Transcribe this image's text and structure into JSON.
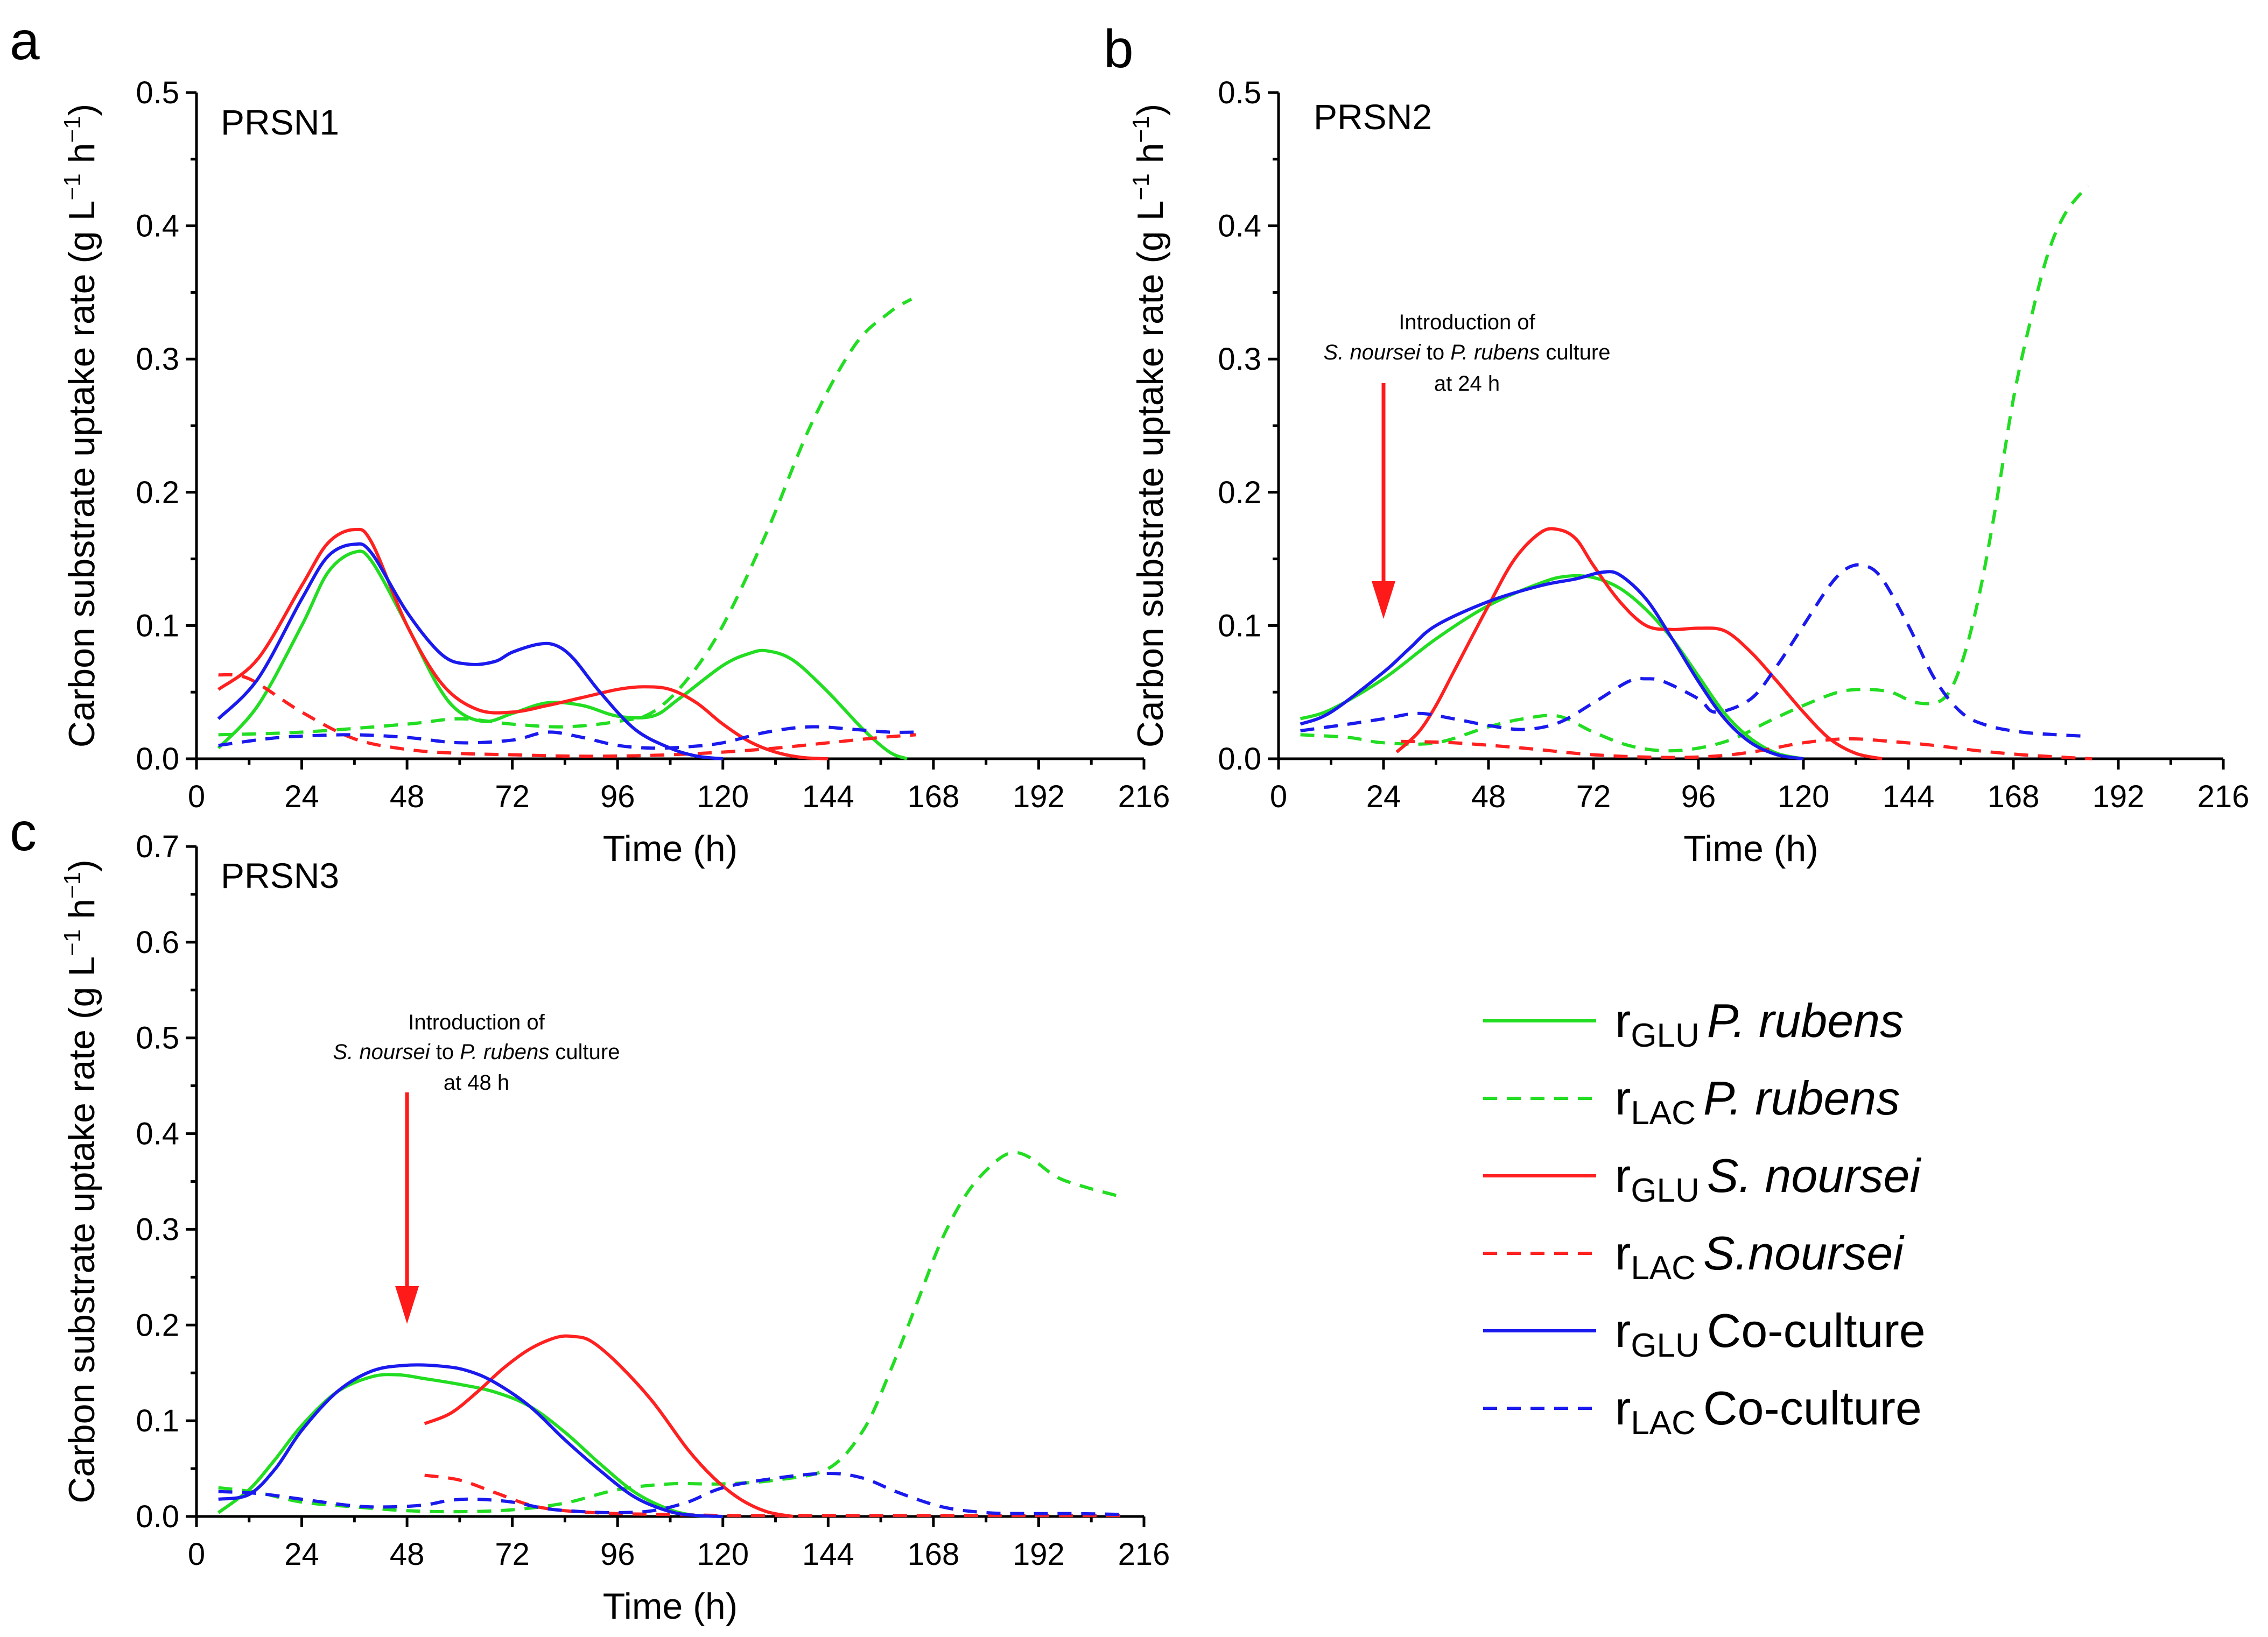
{
  "chart_data": [
    {
      "panel": "a",
      "type": "line",
      "title": "PRSN1",
      "xlabel": "Time (h)",
      "ylabel": "Carbon substrate uptake rate (g L−1 h−1)",
      "xlim": [
        0,
        216
      ],
      "ylim": [
        0,
        0.5
      ],
      "xticks": [
        0,
        24,
        48,
        72,
        96,
        120,
        144,
        168,
        192,
        216
      ],
      "yticks": [
        "0.0",
        "0.1",
        "0.2",
        "0.3",
        "0.4",
        "0.5"
      ],
      "series": [
        {
          "name": "rGLU P. rubens",
          "color": "#22dd22",
          "style": "solid",
          "x": [
            5,
            14,
            24,
            30,
            36,
            40,
            48,
            55,
            60,
            66,
            72,
            80,
            88,
            96,
            104,
            110,
            120,
            126,
            130,
            136,
            144,
            152,
            158,
            162
          ],
          "y": [
            0.008,
            0.04,
            0.1,
            0.14,
            0.155,
            0.148,
            0.1,
            0.055,
            0.035,
            0.028,
            0.034,
            0.042,
            0.04,
            0.032,
            0.032,
            0.045,
            0.07,
            0.079,
            0.081,
            0.074,
            0.05,
            0.022,
            0.005,
            0.0
          ]
        },
        {
          "name": "rLAC P. rubens",
          "color": "#22dd22",
          "style": "dashed",
          "x": [
            5,
            24,
            48,
            60,
            72,
            84,
            96,
            104,
            112,
            120,
            130,
            140,
            150,
            158,
            163
          ],
          "y": [
            0.018,
            0.02,
            0.026,
            0.03,
            0.026,
            0.024,
            0.028,
            0.035,
            0.06,
            0.1,
            0.17,
            0.25,
            0.31,
            0.335,
            0.345
          ]
        },
        {
          "name": "rGLU S. noursei",
          "color": "#ff2020",
          "style": "solid",
          "x": [
            5,
            14,
            24,
            30,
            36,
            40,
            48,
            56,
            64,
            72,
            80,
            88,
            96,
            102,
            108,
            114,
            120,
            126,
            132,
            138,
            144
          ],
          "y": [
            0.052,
            0.075,
            0.13,
            0.162,
            0.172,
            0.162,
            0.1,
            0.056,
            0.037,
            0.035,
            0.04,
            0.046,
            0.052,
            0.054,
            0.052,
            0.042,
            0.026,
            0.013,
            0.005,
            0.001,
            0.0
          ]
        },
        {
          "name": "rLAC S.noursei",
          "color": "#ff2020",
          "style": "dashed",
          "x": [
            5,
            12,
            24,
            36,
            48,
            60,
            72,
            84,
            96,
            108,
            120,
            132,
            144,
            156,
            164
          ],
          "y": [
            0.063,
            0.06,
            0.035,
            0.015,
            0.007,
            0.004,
            0.003,
            0.002,
            0.002,
            0.003,
            0.005,
            0.008,
            0.012,
            0.016,
            0.018
          ]
        },
        {
          "name": "rGLU Co-culture",
          "color": "#1a1aee",
          "style": "solid",
          "x": [
            5,
            14,
            24,
            30,
            36,
            40,
            48,
            56,
            62,
            68,
            72,
            78,
            82,
            86,
            92,
            100,
            108,
            114,
            120
          ],
          "y": [
            0.03,
            0.06,
            0.12,
            0.152,
            0.161,
            0.154,
            0.11,
            0.078,
            0.071,
            0.073,
            0.08,
            0.086,
            0.085,
            0.075,
            0.05,
            0.022,
            0.008,
            0.002,
            0.0
          ]
        },
        {
          "name": "rLAC Co-culture",
          "color": "#1a1aee",
          "style": "dashed",
          "x": [
            5,
            16,
            24,
            36,
            48,
            60,
            72,
            80,
            88,
            96,
            104,
            112,
            120,
            130,
            140,
            150,
            158,
            164
          ],
          "y": [
            0.01,
            0.015,
            0.017,
            0.018,
            0.016,
            0.012,
            0.014,
            0.02,
            0.016,
            0.01,
            0.008,
            0.009,
            0.012,
            0.02,
            0.024,
            0.022,
            0.02,
            0.02
          ]
        }
      ]
    },
    {
      "panel": "b",
      "type": "line",
      "title": "PRSN2",
      "xlabel": "Time (h)",
      "ylabel": "Carbon substrate uptake rate (g L−1 h−1)",
      "xlim": [
        0,
        216
      ],
      "ylim": [
        0,
        0.5
      ],
      "xticks": [
        0,
        24,
        48,
        72,
        96,
        120,
        144,
        168,
        192,
        216
      ],
      "yticks": [
        "0.0",
        "0.1",
        "0.2",
        "0.3",
        "0.4",
        "0.5"
      ],
      "annotation": {
        "lines": [
          "Introduction of",
          "S. noursei to P. rubens culture",
          "at 24 h"
        ],
        "arrow_time": 24
      },
      "series": [
        {
          "name": "rGLU P. rubens",
          "color": "#22dd22",
          "style": "solid",
          "x": [
            5,
            12,
            24,
            36,
            48,
            60,
            66,
            72,
            78,
            84,
            90,
            96,
            102,
            108,
            114,
            120
          ],
          "y": [
            0.03,
            0.037,
            0.06,
            0.09,
            0.115,
            0.132,
            0.137,
            0.136,
            0.128,
            0.112,
            0.09,
            0.062,
            0.034,
            0.015,
            0.004,
            0.0
          ]
        },
        {
          "name": "rLAC P. rubens",
          "color": "#22dd22",
          "style": "dashed",
          "x": [
            5,
            16,
            24,
            36,
            48,
            56,
            64,
            72,
            80,
            88,
            96,
            104,
            112,
            120,
            128,
            134,
            140,
            146,
            152,
            156,
            160,
            164,
            168,
            172,
            176,
            180,
            185
          ],
          "y": [
            0.018,
            0.016,
            0.012,
            0.012,
            0.024,
            0.03,
            0.032,
            0.02,
            0.01,
            0.006,
            0.008,
            0.015,
            0.028,
            0.04,
            0.05,
            0.052,
            0.05,
            0.042,
            0.045,
            0.07,
            0.12,
            0.19,
            0.27,
            0.33,
            0.38,
            0.41,
            0.43
          ]
        },
        {
          "name": "rGLU S. noursei",
          "color": "#ff2020",
          "style": "solid",
          "x": [
            27,
            32,
            36,
            40,
            48,
            54,
            60,
            64,
            68,
            72,
            78,
            84,
            90,
            96,
            102,
            108,
            114,
            120,
            126,
            132,
            138
          ],
          "y": [
            0.005,
            0.02,
            0.04,
            0.065,
            0.115,
            0.15,
            0.17,
            0.172,
            0.165,
            0.145,
            0.118,
            0.1,
            0.097,
            0.098,
            0.096,
            0.08,
            0.058,
            0.035,
            0.015,
            0.004,
            0.0
          ]
        },
        {
          "name": "rLAC S.noursei",
          "color": "#ff2020",
          "style": "dashed",
          "x": [
            28,
            40,
            56,
            72,
            88,
            100,
            110,
            120,
            130,
            140,
            150,
            160,
            170,
            180,
            186
          ],
          "y": [
            0.013,
            0.012,
            0.008,
            0.003,
            0.001,
            0.002,
            0.006,
            0.012,
            0.015,
            0.013,
            0.01,
            0.006,
            0.003,
            0.001,
            0.0
          ]
        },
        {
          "name": "rGLU Co-culture",
          "color": "#1a1aee",
          "style": "solid",
          "x": [
            5,
            12,
            24,
            30,
            36,
            48,
            60,
            68,
            74,
            78,
            84,
            90,
            96,
            102,
            108,
            114,
            120
          ],
          "y": [
            0.026,
            0.035,
            0.065,
            0.083,
            0.1,
            0.118,
            0.13,
            0.135,
            0.14,
            0.138,
            0.12,
            0.09,
            0.058,
            0.03,
            0.012,
            0.003,
            0.0
          ]
        },
        {
          "name": "rLAC Co-culture",
          "color": "#1a1aee",
          "style": "dashed",
          "x": [
            5,
            16,
            24,
            32,
            40,
            48,
            56,
            64,
            72,
            80,
            84,
            88,
            96,
            100,
            108,
            114,
            120,
            126,
            130,
            134,
            138,
            144,
            150,
            156,
            162,
            170,
            178,
            184
          ],
          "y": [
            0.021,
            0.026,
            0.03,
            0.034,
            0.03,
            0.025,
            0.022,
            0.027,
            0.042,
            0.058,
            0.06,
            0.058,
            0.045,
            0.035,
            0.045,
            0.07,
            0.1,
            0.13,
            0.143,
            0.145,
            0.135,
            0.1,
            0.06,
            0.035,
            0.025,
            0.02,
            0.018,
            0.017
          ]
        }
      ]
    },
    {
      "panel": "c",
      "type": "line",
      "title": "PRSN3",
      "xlabel": "Time (h)",
      "ylabel": "Carbon substrate uptake rate (g L−1 h−1)",
      "xlim": [
        0,
        216
      ],
      "ylim": [
        0,
        0.7
      ],
      "xticks": [
        0,
        24,
        48,
        72,
        96,
        120,
        144,
        168,
        192,
        216
      ],
      "yticks": [
        "0.0",
        "0.1",
        "0.2",
        "0.3",
        "0.4",
        "0.5",
        "0.6",
        "0.7"
      ],
      "annotation": {
        "lines": [
          "Introduction of",
          "S. noursei to P. rubens culture",
          "at 48 h"
        ],
        "arrow_time": 48
      },
      "series": [
        {
          "name": "rGLU P. rubens",
          "color": "#22dd22",
          "style": "solid",
          "x": [
            5,
            12,
            18,
            24,
            32,
            40,
            46,
            52,
            60,
            68,
            76,
            84,
            92,
            100,
            108,
            114,
            120
          ],
          "y": [
            0.004,
            0.028,
            0.06,
            0.095,
            0.13,
            0.146,
            0.148,
            0.144,
            0.138,
            0.13,
            0.115,
            0.088,
            0.055,
            0.025,
            0.007,
            0.001,
            0.0
          ]
        },
        {
          "name": "rLAC P. rubens",
          "color": "#22dd22",
          "style": "dashed",
          "x": [
            5,
            14,
            24,
            36,
            48,
            60,
            72,
            84,
            96,
            108,
            120,
            132,
            144,
            152,
            158,
            164,
            170,
            176,
            182,
            186,
            190,
            196,
            202,
            210
          ],
          "y": [
            0.03,
            0.025,
            0.015,
            0.01,
            0.006,
            0.005,
            0.007,
            0.014,
            0.028,
            0.034,
            0.034,
            0.038,
            0.05,
            0.09,
            0.15,
            0.22,
            0.29,
            0.34,
            0.37,
            0.38,
            0.375,
            0.355,
            0.345,
            0.335
          ]
        },
        {
          "name": "rGLU S. noursei",
          "color": "#ff2020",
          "style": "solid",
          "x": [
            52,
            58,
            64,
            70,
            76,
            82,
            86,
            90,
            96,
            104,
            112,
            118,
            124,
            130,
            136
          ],
          "y": [
            0.097,
            0.108,
            0.13,
            0.155,
            0.175,
            0.187,
            0.188,
            0.183,
            0.16,
            0.12,
            0.07,
            0.04,
            0.018,
            0.005,
            0.0
          ]
        },
        {
          "name": "rLAC S.noursei",
          "color": "#ff2020",
          "style": "dashed",
          "x": [
            52,
            60,
            68,
            76,
            84,
            96,
            108,
            120,
            132,
            144,
            160,
            180,
            200,
            212
          ],
          "y": [
            0.043,
            0.038,
            0.025,
            0.012,
            0.006,
            0.003,
            0.002,
            0.001,
            0.001,
            0.001,
            0.001,
            0.001,
            0.001,
            0.001
          ]
        },
        {
          "name": "rGLU Co-culture",
          "color": "#1a1aee",
          "style": "solid",
          "x": [
            5,
            12,
            18,
            24,
            32,
            40,
            48,
            56,
            62,
            68,
            76,
            84,
            92,
            100,
            108,
            114,
            120
          ],
          "y": [
            0.018,
            0.023,
            0.05,
            0.09,
            0.13,
            0.152,
            0.158,
            0.157,
            0.152,
            0.14,
            0.115,
            0.08,
            0.048,
            0.02,
            0.005,
            0.001,
            0.0
          ]
        },
        {
          "name": "rLAC Co-culture",
          "color": "#1a1aee",
          "style": "dashed",
          "x": [
            5,
            14,
            24,
            36,
            44,
            52,
            58,
            64,
            72,
            80,
            88,
            96,
            104,
            112,
            120,
            132,
            144,
            152,
            160,
            170,
            180,
            190,
            200,
            212
          ],
          "y": [
            0.026,
            0.024,
            0.018,
            0.011,
            0.01,
            0.012,
            0.017,
            0.018,
            0.015,
            0.008,
            0.005,
            0.004,
            0.006,
            0.015,
            0.03,
            0.04,
            0.045,
            0.04,
            0.025,
            0.01,
            0.004,
            0.003,
            0.003,
            0.002
          ]
        }
      ]
    }
  ],
  "legend": [
    {
      "var": "r",
      "sub": "GLU",
      "species": "P. rubens",
      "italic": true,
      "color": "#22dd22",
      "style": "solid"
    },
    {
      "var": "r",
      "sub": "LAC",
      "species": "P. rubens",
      "italic": true,
      "color": "#22dd22",
      "style": "dashed"
    },
    {
      "var": "r",
      "sub": "GLU",
      "species": "S. noursei",
      "italic": true,
      "color": "#ff2020",
      "style": "solid"
    },
    {
      "var": "r",
      "sub": "LAC",
      "species": "S.noursei",
      "italic": true,
      "color": "#ff2020",
      "style": "dashed"
    },
    {
      "var": "r",
      "sub": "GLU",
      "species": "Co-culture",
      "italic": false,
      "color": "#1a1aee",
      "style": "solid"
    },
    {
      "var": "r",
      "sub": "LAC",
      "species": "Co-culture",
      "italic": false,
      "color": "#1a1aee",
      "style": "dashed"
    }
  ],
  "axis_text": {
    "ylabel_main": "Carbon substrate uptake rate (g L",
    "ylabel_sup1": "−1",
    "ylabel_mid": " h",
    "ylabel_sup2": "−1",
    "ylabel_end": ")"
  },
  "annotation_parts": {
    "line1": "Introduction of",
    "noursei": "S. noursei",
    "to": " to ",
    "rubens": "P. rubens",
    "culture": " culture"
  }
}
